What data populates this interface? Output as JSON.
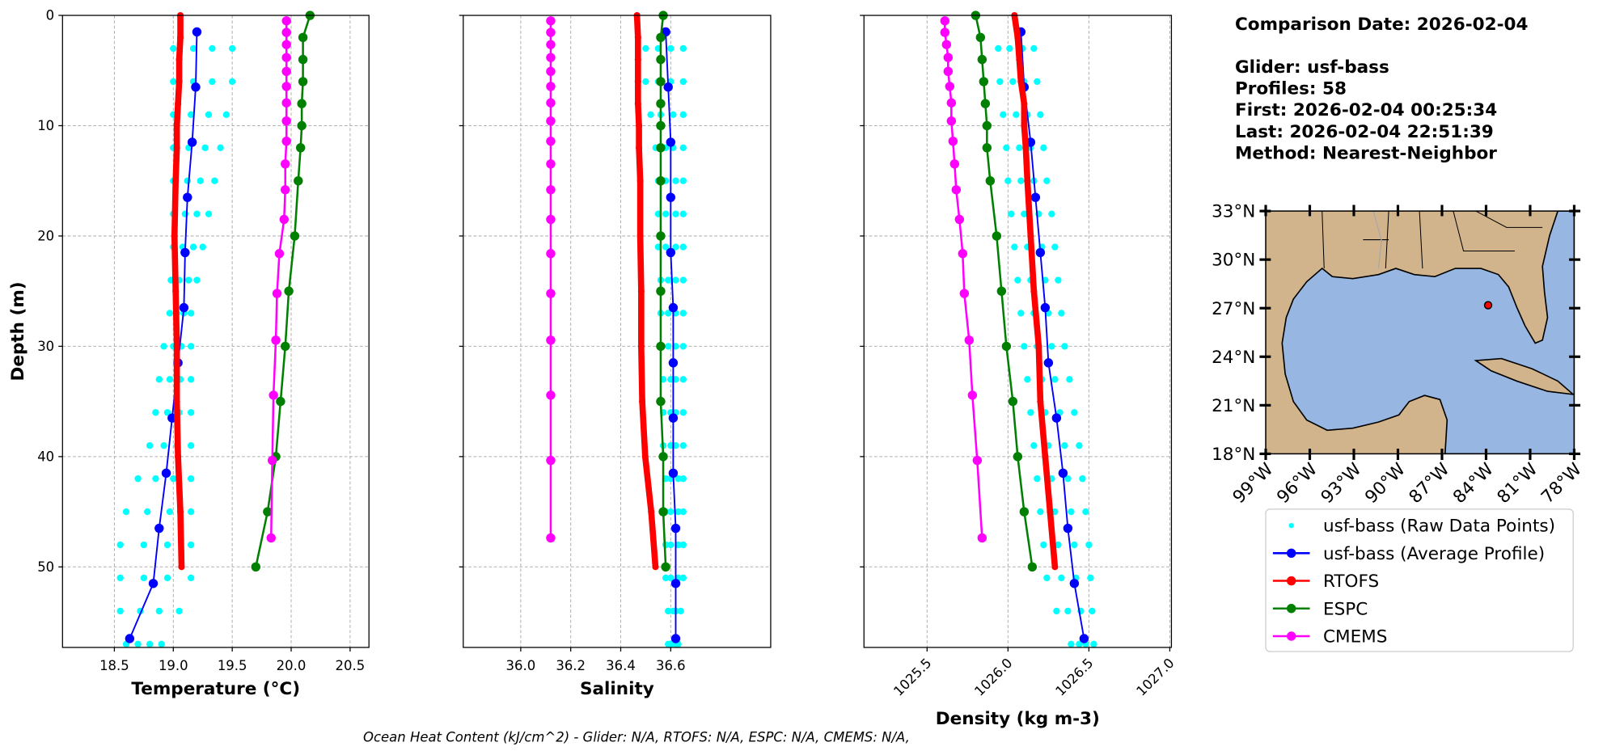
{
  "info": {
    "title": "Comparison Date: 2026-02-04",
    "lines": [
      "Glider: usf-bass",
      "Profiles: 58",
      "First: 2026-02-04 00:25:34",
      "Last: 2026-02-04 22:51:39",
      "Method: Nearest-Neighbor"
    ]
  },
  "footer": "Ocean Heat Content (kJ/cm^2) - Glider: N/A,  RTOFS: N/A,  ESPC: N/A,  CMEMS: N/A,",
  "legend": {
    "entries": [
      {
        "name": "usf-bass (Raw Data Points)",
        "color": "#00ffff",
        "kind": "scatter"
      },
      {
        "name": "usf-bass (Average Profile)",
        "color": "#0000ff",
        "kind": "line"
      },
      {
        "name": "RTOFS",
        "color": "#ff0000",
        "kind": "line"
      },
      {
        "name": "ESPC",
        "color": "#008000",
        "kind": "line"
      },
      {
        "name": "CMEMS",
        "color": "#ff00ff",
        "kind": "line"
      }
    ]
  },
  "chart_data": [
    {
      "type": "line",
      "xlabel": "Temperature (°C)",
      "ylabel": "Depth (m)",
      "grid": true,
      "show_ytick_labels": true,
      "xtick_rotation": 0,
      "xlim": [
        18.06,
        20.66
      ],
      "ylim": [
        57.3,
        0
      ],
      "xticks": [
        18.5,
        {
          "value": 19,
          "label": "19.0"
        },
        19.5,
        {
          "value": 20,
          "label": "20.0"
        },
        20.5
      ],
      "yticks": [
        0,
        10,
        20,
        30,
        40,
        50
      ],
      "series": [
        {
          "x": [
            19.0,
            19.17,
            19.33,
            19.5,
            19.0,
            19.17,
            19.33,
            19.5,
            19.0,
            19.15,
            19.3,
            19.45,
            19.0,
            19.13,
            19.27,
            19.4,
            19.0,
            19.12,
            19.23,
            19.35,
            19.0,
            19.1,
            19.2,
            19.3,
            19.0,
            19.08,
            19.17,
            19.25,
            18.98,
            19.05,
            19.13,
            19.2,
            18.97,
            19.03,
            19.09,
            19.15,
            18.92,
            19.0,
            19.07,
            19.15,
            18.88,
            18.97,
            19.06,
            19.15,
            18.85,
            18.95,
            19.05,
            19.15,
            18.8,
            18.92,
            19.03,
            19.15,
            18.7,
            18.85,
            19.0,
            19.15,
            18.6,
            18.78,
            18.97,
            19.15,
            18.55,
            18.75,
            18.95,
            19.15,
            18.55,
            18.75,
            18.95,
            19.15,
            18.55,
            18.72,
            18.88,
            19.05,
            18.6,
            18.7,
            18.8,
            18.9
          ],
          "y": [
            3,
            3,
            3,
            3,
            6,
            6,
            6,
            6,
            9,
            9,
            9,
            9,
            12,
            12,
            12,
            12,
            15,
            15,
            15,
            15,
            18,
            18,
            18,
            18,
            21,
            21,
            21,
            21,
            24,
            24,
            24,
            24,
            27,
            27,
            27,
            27,
            30,
            30,
            30,
            30,
            33,
            33,
            33,
            33,
            36,
            36,
            36,
            36,
            39,
            39,
            39,
            39,
            42,
            42,
            42,
            42,
            45,
            45,
            45,
            45,
            48,
            48,
            48,
            48,
            51,
            51,
            51,
            51,
            54,
            54,
            54,
            54,
            57,
            57,
            57,
            57
          ]
        },
        {
          "x": [
            19.2,
            19.19,
            19.16,
            19.12,
            19.1,
            19.09,
            19.04,
            18.99,
            18.94,
            18.88,
            18.83,
            18.63
          ],
          "y": [
            1.5,
            6.5,
            11.5,
            16.5,
            21.5,
            26.5,
            31.5,
            36.5,
            41.5,
            46.5,
            51.5,
            56.5
          ]
        },
        {
          "x": [
            19.06,
            19.06,
            19.05,
            19.05,
            19.04,
            19.03,
            19.03,
            19.02,
            19.01,
            19.02,
            19.03,
            19.03,
            19.04,
            19.06,
            19.07
          ],
          "y": [
            0,
            2,
            4,
            6,
            8,
            10,
            12,
            15,
            20,
            25,
            30,
            35,
            40,
            45,
            50
          ]
        },
        {
          "x": [
            20.16,
            20.1,
            20.1,
            20.1,
            20.09,
            20.09,
            20.08,
            20.06,
            20.03,
            19.98,
            19.95,
            19.91,
            19.87,
            19.8,
            19.7
          ],
          "y": [
            0,
            2,
            4,
            6,
            8,
            10,
            12,
            15,
            20,
            25,
            30,
            35,
            40,
            45,
            50
          ]
        },
        {
          "x": [
            19.96,
            19.96,
            19.96,
            19.96,
            19.96,
            19.96,
            19.96,
            19.96,
            19.96,
            19.95,
            19.95,
            19.94,
            19.9,
            19.88,
            19.87,
            19.85,
            19.84,
            19.83
          ],
          "y": [
            0.494,
            1.541,
            2.646,
            3.819,
            5.078,
            6.441,
            7.93,
            9.573,
            11.405,
            13.467,
            15.81,
            18.496,
            21.599,
            25.211,
            29.445,
            34.434,
            40.344,
            47.374
          ]
        }
      ]
    },
    {
      "type": "line",
      "xlabel": "Salinity",
      "grid": true,
      "show_ytick_labels": false,
      "xtick_rotation": 0,
      "xlim": [
        35.77,
        37.0
      ],
      "ylim": [
        57.3,
        0
      ],
      "xticks": [
        {
          "value": 36,
          "label": "36.0"
        },
        36.2,
        36.4,
        36.6
      ],
      "yticks": [
        0,
        10,
        20,
        30,
        40,
        50
      ],
      "series": [
        {
          "x": [
            36.5,
            36.55,
            36.6,
            36.65,
            36.5,
            36.55,
            36.6,
            36.65,
            36.52,
            36.56,
            36.61,
            36.65,
            36.54,
            36.58,
            36.61,
            36.65,
            36.55,
            36.58,
            36.62,
            36.65,
            36.55,
            36.58,
            36.62,
            36.65,
            36.55,
            36.58,
            36.62,
            36.65,
            36.56,
            36.59,
            36.62,
            36.65,
            36.56,
            36.59,
            36.62,
            36.65,
            36.56,
            36.59,
            36.62,
            36.65,
            36.57,
            36.6,
            36.62,
            36.65,
            36.57,
            36.6,
            36.62,
            36.65,
            36.57,
            36.6,
            36.62,
            36.65,
            36.58,
            36.6,
            36.63,
            36.65,
            36.58,
            36.6,
            36.63,
            36.65,
            36.58,
            36.6,
            36.63,
            36.65,
            36.58,
            36.6,
            36.63,
            36.65,
            36.59,
            36.61,
            36.62,
            36.64,
            36.59,
            36.6,
            36.62,
            36.63
          ],
          "y": [
            3,
            3,
            3,
            3,
            6,
            6,
            6,
            6,
            9,
            9,
            9,
            9,
            12,
            12,
            12,
            12,
            15,
            15,
            15,
            15,
            18,
            18,
            18,
            18,
            21,
            21,
            21,
            21,
            24,
            24,
            24,
            24,
            27,
            27,
            27,
            27,
            30,
            30,
            30,
            30,
            33,
            33,
            33,
            33,
            36,
            36,
            36,
            36,
            39,
            39,
            39,
            39,
            42,
            42,
            42,
            42,
            45,
            45,
            45,
            45,
            48,
            48,
            48,
            48,
            51,
            51,
            51,
            51,
            54,
            54,
            54,
            54,
            57,
            57,
            57,
            57
          ]
        },
        {
          "x": [
            36.58,
            36.59,
            36.6,
            36.6,
            36.6,
            36.61,
            36.61,
            36.61,
            36.61,
            36.62,
            36.62,
            36.62
          ],
          "y": [
            1.5,
            6.5,
            11.5,
            16.5,
            21.5,
            26.5,
            31.5,
            36.5,
            41.5,
            46.5,
            51.5,
            56.5
          ]
        },
        {
          "x": [
            36.465,
            36.469,
            36.469,
            36.469,
            36.469,
            36.473,
            36.473,
            36.478,
            36.478,
            36.482,
            36.482,
            36.486,
            36.498,
            36.522,
            36.539
          ],
          "y": [
            0,
            2,
            4,
            6,
            8,
            10,
            12,
            15,
            20,
            25,
            30,
            35,
            40,
            45,
            50
          ]
        },
        {
          "x": [
            36.57,
            36.56,
            36.56,
            36.56,
            36.56,
            36.56,
            36.56,
            36.56,
            36.56,
            36.56,
            36.56,
            36.56,
            36.57,
            36.57,
            36.58
          ],
          "y": [
            0,
            2,
            4,
            6,
            8,
            10,
            12,
            15,
            20,
            25,
            30,
            35,
            40,
            45,
            50
          ]
        },
        {
          "x": [
            36.12,
            36.12,
            36.12,
            36.12,
            36.12,
            36.12,
            36.12,
            36.12,
            36.12,
            36.12,
            36.12,
            36.12,
            36.12,
            36.12,
            36.12,
            36.12,
            36.12,
            36.12
          ],
          "y": [
            0.494,
            1.541,
            2.646,
            3.819,
            5.078,
            6.441,
            7.93,
            9.573,
            11.405,
            13.467,
            15.81,
            18.496,
            21.599,
            25.211,
            29.445,
            34.434,
            40.344,
            47.374
          ]
        }
      ]
    },
    {
      "type": "line",
      "xlabel": "Density (kg m-3)",
      "grid": true,
      "show_ytick_labels": false,
      "xtick_rotation": 45,
      "xlim": [
        1025.11,
        1027.01
      ],
      "ylim": [
        57.3,
        0
      ],
      "xticks": [
        1025.5,
        {
          "value": 1026,
          "label": "1026.0"
        },
        1026.5,
        {
          "value": 1027,
          "label": "1027.0"
        }
      ],
      "yticks": [
        0,
        10,
        20,
        30,
        40,
        50
      ],
      "series": [
        {
          "x": [
            1025.94,
            1026.01,
            1026.09,
            1026.16,
            1025.95,
            1026.03,
            1026.1,
            1026.18,
            1025.97,
            1026.05,
            1026.12,
            1026.2,
            1025.99,
            1026.07,
            1026.14,
            1026.22,
            1026.0,
            1026.08,
            1026.16,
            1026.24,
            1026.02,
            1026.1,
            1026.19,
            1026.27,
            1026.04,
            1026.12,
            1026.21,
            1026.29,
            1026.06,
            1026.14,
            1026.23,
            1026.31,
            1026.08,
            1026.16,
            1026.25,
            1026.33,
            1026.1,
            1026.18,
            1026.27,
            1026.35,
            1026.12,
            1026.21,
            1026.29,
            1026.38,
            1026.14,
            1026.23,
            1026.32,
            1026.41,
            1026.16,
            1026.25,
            1026.35,
            1026.44,
            1026.18,
            1026.27,
            1026.37,
            1026.46,
            1026.2,
            1026.29,
            1026.39,
            1026.48,
            1026.22,
            1026.31,
            1026.41,
            1026.5,
            1026.24,
            1026.33,
            1026.42,
            1026.51,
            1026.3,
            1026.37,
            1026.45,
            1026.52,
            1026.39,
            1026.44,
            1026.48,
            1026.53
          ],
          "y": [
            3,
            3,
            3,
            3,
            6,
            6,
            6,
            6,
            9,
            9,
            9,
            9,
            12,
            12,
            12,
            12,
            15,
            15,
            15,
            15,
            18,
            18,
            18,
            18,
            21,
            21,
            21,
            21,
            24,
            24,
            24,
            24,
            27,
            27,
            27,
            27,
            30,
            30,
            30,
            30,
            33,
            33,
            33,
            33,
            36,
            36,
            36,
            36,
            39,
            39,
            39,
            39,
            42,
            42,
            42,
            42,
            45,
            45,
            45,
            45,
            48,
            48,
            48,
            48,
            51,
            51,
            51,
            51,
            54,
            54,
            54,
            54,
            57,
            57,
            57,
            57
          ]
        },
        {
          "x": [
            1026.08,
            1026.1,
            1026.14,
            1026.17,
            1026.2,
            1026.23,
            1026.25,
            1026.3,
            1026.34,
            1026.37,
            1026.41,
            1026.47
          ],
          "y": [
            1.5,
            6.5,
            11.5,
            16.5,
            21.5,
            26.5,
            31.5,
            36.5,
            41.5,
            46.5,
            51.5,
            56.5
          ]
        },
        {
          "x": [
            1026.04,
            1026.06,
            1026.07,
            1026.08,
            1026.1,
            1026.1,
            1026.11,
            1026.12,
            1026.14,
            1026.16,
            1026.19,
            1026.2,
            1026.23,
            1026.26,
            1026.29
          ],
          "y": [
            0,
            2,
            4,
            6,
            8,
            10,
            12,
            15,
            20,
            25,
            30,
            35,
            40,
            45,
            50
          ]
        },
        {
          "x": [
            1025.8,
            1025.83,
            1025.84,
            1025.85,
            1025.86,
            1025.87,
            1025.87,
            1025.89,
            1025.93,
            1025.96,
            1025.99,
            1026.03,
            1026.06,
            1026.1,
            1026.15
          ],
          "y": [
            0,
            2,
            4,
            6,
            8,
            10,
            12,
            15,
            20,
            25,
            30,
            35,
            40,
            45,
            50
          ]
        },
        {
          "x": [
            1025.61,
            1025.61,
            1025.62,
            1025.63,
            1025.63,
            1025.64,
            1025.65,
            1025.65,
            1025.66,
            1025.67,
            1025.68,
            1025.7,
            1025.72,
            1025.73,
            1025.76,
            1025.78,
            1025.81,
            1025.84
          ],
          "y": [
            0.494,
            1.541,
            2.646,
            3.819,
            5.078,
            6.441,
            7.93,
            9.573,
            11.405,
            13.467,
            15.81,
            18.496,
            21.599,
            25.211,
            29.445,
            34.434,
            40.344,
            47.374
          ]
        }
      ]
    },
    {
      "type": "map",
      "xlim": [
        -99,
        -78
      ],
      "ylim": [
        18,
        33
      ],
      "xtick_rotation": 45,
      "xticks": [
        {
          "value": -99,
          "label": "99°W"
        },
        {
          "value": -96,
          "label": "96°W"
        },
        {
          "value": -93,
          "label": "93°W"
        },
        {
          "value": -90,
          "label": "90°W"
        },
        {
          "value": -87,
          "label": "87°W"
        },
        {
          "value": -84,
          "label": "84°W"
        },
        {
          "value": -81,
          "label": "81°W"
        },
        {
          "value": -78,
          "label": "78°W"
        }
      ],
      "yticks": [
        {
          "value": 18,
          "label": "18°N"
        },
        {
          "value": 21,
          "label": "21°N"
        },
        {
          "value": 24,
          "label": "24°N"
        },
        {
          "value": 27,
          "label": "27°N"
        },
        {
          "value": 30,
          "label": "30°N"
        },
        {
          "value": 33,
          "label": "33°N"
        }
      ],
      "series": [
        {
          "color": "#ff0000",
          "x": [
            -83.86
          ],
          "y": [
            27.18
          ]
        }
      ]
    }
  ]
}
